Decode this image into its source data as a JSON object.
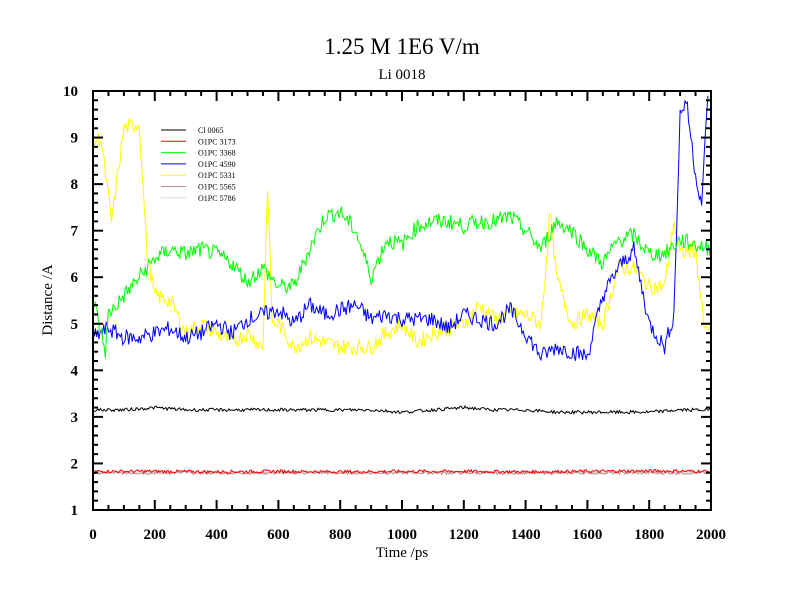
{
  "chart_data": {
    "type": "line",
    "title": "1.25 M 1E6 V/m",
    "subtitle": "Li 0018",
    "xlabel": "Time /ps",
    "ylabel": "Distance /A",
    "xlim": [
      0,
      2000
    ],
    "ylim": [
      1,
      10
    ],
    "xticks": [
      0,
      200,
      400,
      600,
      800,
      1000,
      1200,
      1400,
      1600,
      1800,
      2000
    ],
    "yticks": [
      1,
      2,
      3,
      4,
      5,
      6,
      7,
      8,
      9,
      10
    ],
    "grid": false,
    "legend_placement": "top-left",
    "series": [
      {
        "name": "Cl 0065",
        "color": "#000000",
        "x": [
          0,
          100,
          200,
          300,
          400,
          500,
          600,
          700,
          800,
          900,
          1000,
          1100,
          1200,
          1300,
          1400,
          1500,
          1600,
          1700,
          1800,
          1900,
          2000
        ],
        "y": [
          3.15,
          3.15,
          3.2,
          3.15,
          3.15,
          3.15,
          3.15,
          3.15,
          3.15,
          3.15,
          3.1,
          3.15,
          3.2,
          3.15,
          3.15,
          3.1,
          3.1,
          3.1,
          3.1,
          3.15,
          3.15
        ]
      },
      {
        "name": "O1PC 3173",
        "color": "#ff0000",
        "x": [
          0,
          200,
          400,
          600,
          800,
          1000,
          1200,
          1400,
          1600,
          1800,
          2000
        ],
        "y": [
          1.83,
          1.83,
          1.82,
          1.83,
          1.82,
          1.83,
          1.83,
          1.82,
          1.83,
          1.84,
          1.83
        ]
      },
      {
        "name": "O1PC 3368",
        "color": "#00ff00",
        "x": [
          0,
          40,
          50,
          100,
          150,
          200,
          250,
          300,
          350,
          400,
          450,
          500,
          550,
          600,
          650,
          700,
          750,
          800,
          850,
          900,
          950,
          1000,
          1050,
          1100,
          1150,
          1200,
          1250,
          1300,
          1350,
          1400,
          1450,
          1500,
          1550,
          1600,
          1650,
          1700,
          1750,
          1800,
          1850,
          1900,
          1950,
          2000
        ],
        "y": [
          5.6,
          4.4,
          5.2,
          5.6,
          6.0,
          6.4,
          6.6,
          6.5,
          6.6,
          6.5,
          6.3,
          5.9,
          6.2,
          5.8,
          5.8,
          6.6,
          7.3,
          7.4,
          7.0,
          6.0,
          6.8,
          6.7,
          7.1,
          7.2,
          7.2,
          7.1,
          7.2,
          7.2,
          7.3,
          7.0,
          6.6,
          7.2,
          7.0,
          6.6,
          6.3,
          6.8,
          6.9,
          6.5,
          6.5,
          6.8,
          6.7,
          6.6
        ]
      },
      {
        "name": "O1PC 4590",
        "color": "#0000ff",
        "x": [
          0,
          50,
          100,
          150,
          200,
          250,
          300,
          350,
          400,
          450,
          500,
          550,
          600,
          650,
          700,
          750,
          800,
          850,
          900,
          950,
          1000,
          1050,
          1100,
          1150,
          1200,
          1250,
          1300,
          1350,
          1400,
          1450,
          1500,
          1550,
          1600,
          1650,
          1700,
          1750,
          1800,
          1850,
          1880,
          1900,
          1920,
          1950,
          1970,
          1990
        ],
        "y": [
          4.7,
          4.9,
          4.7,
          4.7,
          4.8,
          4.9,
          4.7,
          4.8,
          5.0,
          4.8,
          5.1,
          5.2,
          5.3,
          5.0,
          5.4,
          5.2,
          5.3,
          5.4,
          5.1,
          5.2,
          5.1,
          5.1,
          5.1,
          4.9,
          5.2,
          5.1,
          5.0,
          5.3,
          4.8,
          4.3,
          4.5,
          4.4,
          4.3,
          5.6,
          6.2,
          6.6,
          5.0,
          4.5,
          5.2,
          9.5,
          9.8,
          8.2,
          7.6,
          9.9
        ]
      },
      {
        "name": "O1PC 5331",
        "color": "#ffff00",
        "x": [
          0,
          25,
          60,
          100,
          150,
          175,
          200,
          250,
          300,
          350,
          400,
          450,
          500,
          550,
          565,
          580,
          600,
          650,
          700,
          750,
          800,
          850,
          900,
          950,
          1000,
          1050,
          1100,
          1150,
          1200,
          1250,
          1300,
          1350,
          1400,
          1450,
          1480,
          1500,
          1550,
          1600,
          1650,
          1700,
          1750,
          1800,
          1850,
          1880,
          1900,
          1950,
          1980,
          2000
        ],
        "y": [
          8.9,
          9.0,
          7.2,
          9.2,
          9.3,
          6.5,
          5.6,
          5.5,
          4.8,
          5.0,
          4.8,
          4.6,
          4.8,
          4.5,
          8.0,
          5.0,
          5.0,
          4.5,
          4.7,
          4.6,
          4.5,
          4.5,
          4.5,
          4.8,
          5.0,
          4.6,
          4.8,
          4.9,
          5.0,
          5.4,
          5.1,
          5.2,
          5.2,
          5.0,
          7.4,
          6.0,
          5.0,
          5.2,
          5.0,
          6.2,
          6.2,
          5.8,
          5.8,
          7.2,
          6.5,
          6.6,
          4.8,
          5.0
        ]
      },
      {
        "name": "O1PC 5565",
        "color": "#bc8f8f",
        "x": [
          0,
          400,
          800,
          1200,
          1600,
          2000
        ],
        "y": [
          1.8,
          1.8,
          1.8,
          1.8,
          1.8,
          1.8
        ]
      },
      {
        "name": "O1PC 5786",
        "color": "#dcdcdc",
        "x": [
          0,
          400,
          800,
          1200,
          1600,
          2000
        ],
        "y": [
          1.81,
          1.8,
          1.81,
          1.8,
          1.81,
          1.8
        ]
      }
    ]
  }
}
